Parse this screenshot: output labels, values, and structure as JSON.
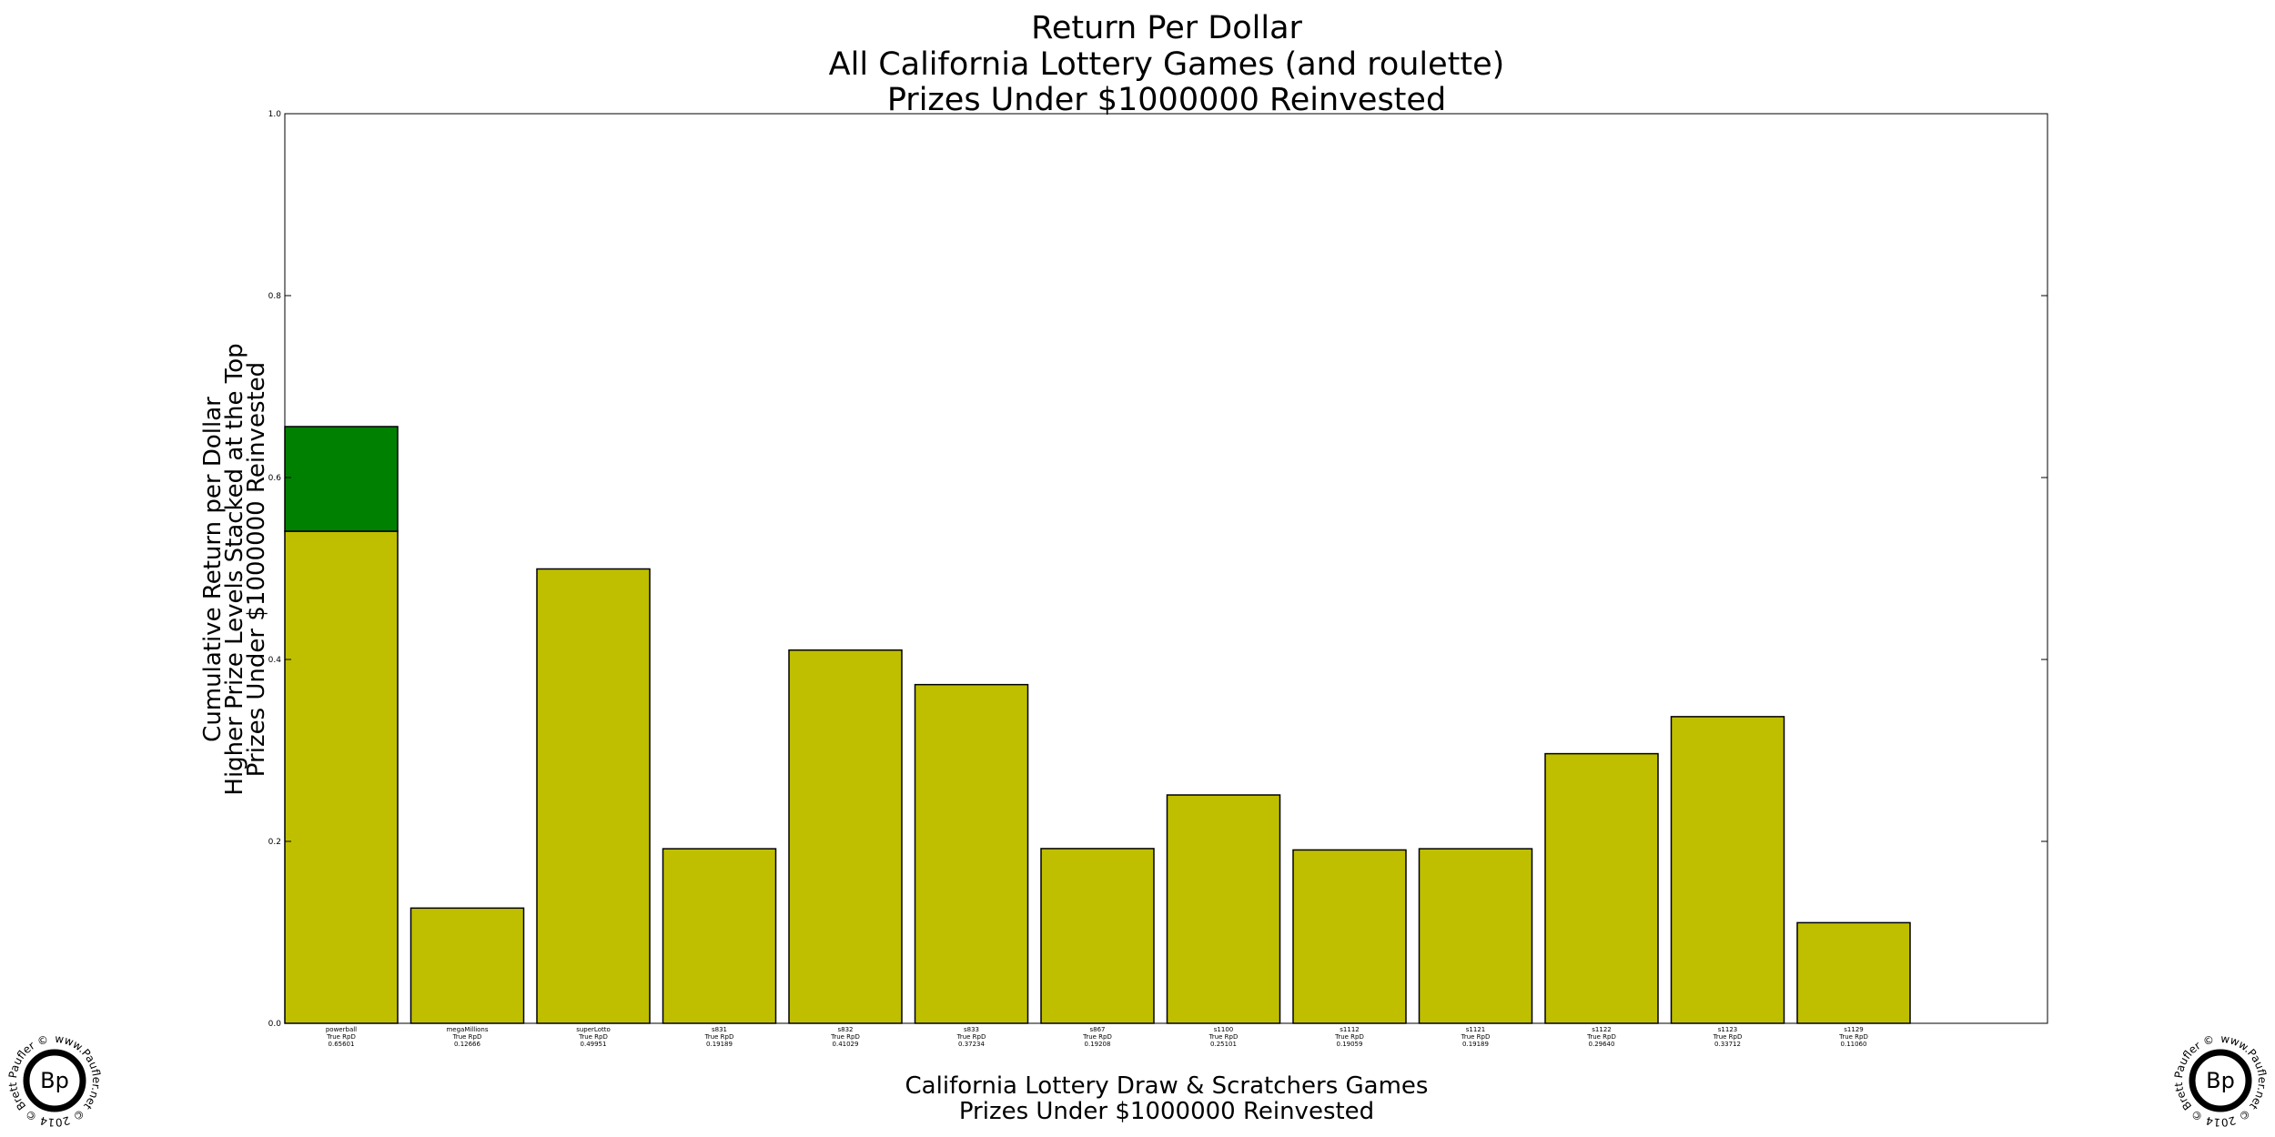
{
  "chart_data": {
    "type": "bar",
    "title": [
      "Return Per Dollar",
      "All California Lottery Games (and roulette)",
      "Prizes Under $1000000 Reinvested"
    ],
    "ylabel": [
      "Cumulative Return per Dollar",
      "Higher Prize Levels Stacked at the Top",
      "Prizes Under $1000000 Reinvested"
    ],
    "xlabel": [
      "California Lottery Draw & Scratchers Games",
      "Prizes Under $1000000 Reinvested"
    ],
    "ylim": [
      0.0,
      1.0
    ],
    "yticks": [
      "0.0",
      "0.2",
      "0.4",
      "0.6",
      "0.8",
      "1.0"
    ],
    "grid": false,
    "stacked": true,
    "colors": {
      "base": "#bfbf00",
      "top": "#008000",
      "edge": "#000000"
    },
    "categories": [
      "powerball",
      "megaMillions",
      "superLotto",
      "s831",
      "s832",
      "s833",
      "s867",
      "s1100",
      "s1112",
      "s1121",
      "s1122",
      "s1123",
      "s1129"
    ],
    "category_labels": [
      [
        "powerball",
        "True RpD",
        "0.65601"
      ],
      [
        "megaMillions",
        "True RpD",
        "0.12666"
      ],
      [
        "superLotto",
        "True RpD",
        "0.49951"
      ],
      [
        "s831",
        "True RpD",
        "0.19189"
      ],
      [
        "s832",
        "True RpD",
        "0.41029"
      ],
      [
        "s833",
        "True RpD",
        "0.37234"
      ],
      [
        "s867",
        "True RpD",
        "0.19208"
      ],
      [
        "s1100",
        "True RpD",
        "0.25101"
      ],
      [
        "s1112",
        "True RpD",
        "0.19059"
      ],
      [
        "s1121",
        "True RpD",
        "0.19189"
      ],
      [
        "s1122",
        "True RpD",
        "0.29640"
      ],
      [
        "s1123",
        "True RpD",
        "0.33712"
      ],
      [
        "s1129",
        "True RpD",
        "0.11060"
      ]
    ],
    "series": [
      {
        "values": [
          0.541,
          0.12666,
          0.49951,
          0.19189,
          0.41029,
          0.37234,
          0.19208,
          0.25101,
          0.19059,
          0.19189,
          0.2964,
          0.33712,
          0.1106
        ]
      },
      {
        "values": [
          0.115,
          0,
          0,
          0,
          0,
          0,
          0,
          0,
          0,
          0,
          0,
          0,
          0
        ]
      }
    ]
  },
  "badge": {
    "center_text": "Bp",
    "ring_text": "www.Paufler.net © 2014 © Brett Paufler ©"
  }
}
